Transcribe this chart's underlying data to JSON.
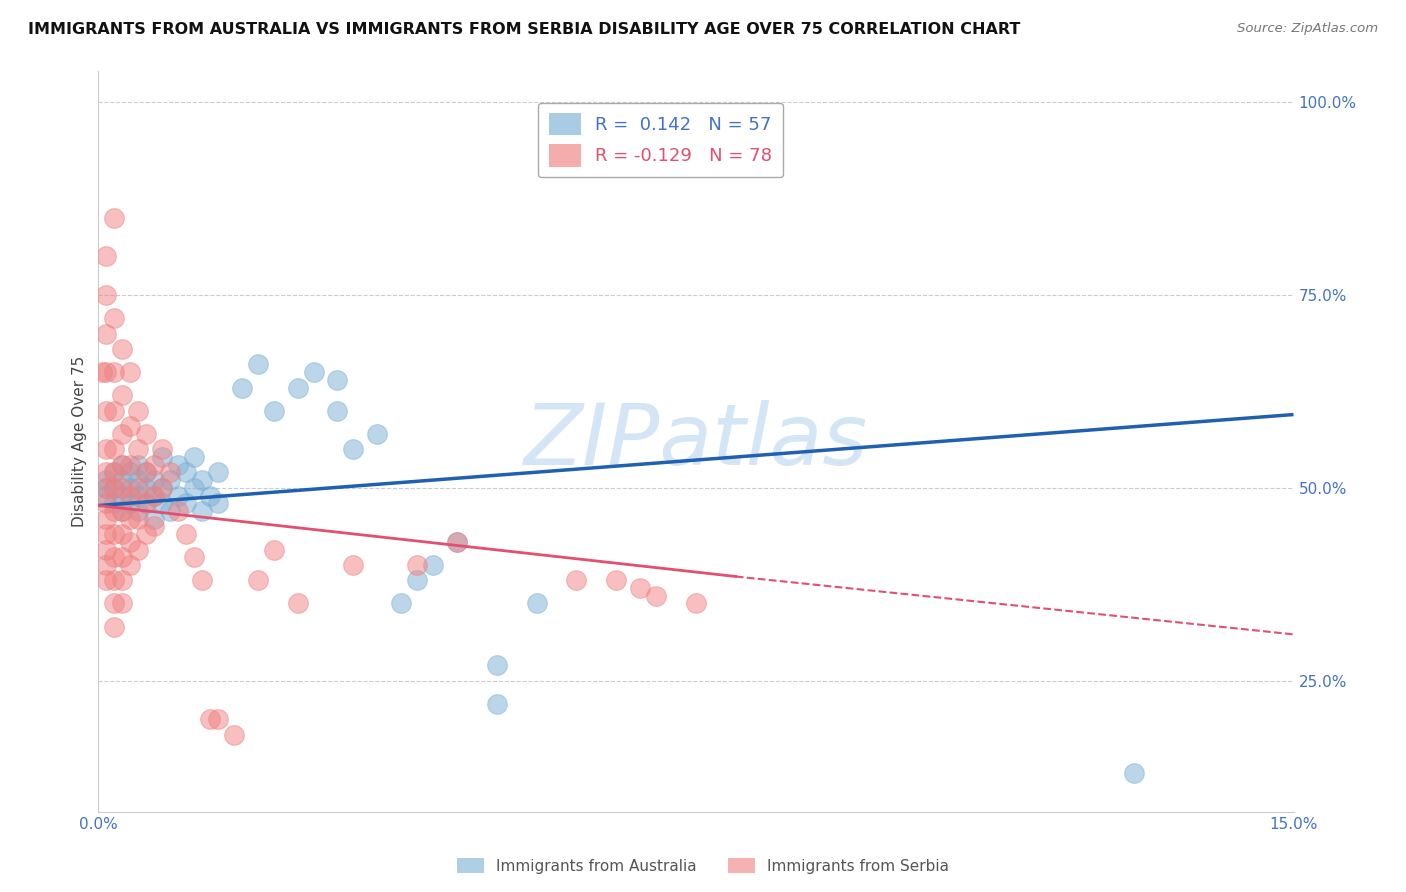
{
  "title": "IMMIGRANTS FROM AUSTRALIA VS IMMIGRANTS FROM SERBIA DISABILITY AGE OVER 75 CORRELATION CHART",
  "source": "Source: ZipAtlas.com",
  "ylabel": "Disability Age Over 75",
  "australia_color": "#7bafd4",
  "serbia_color": "#f08080",
  "watermark": "ZIPatlas",
  "xlim": [
    0.0,
    0.15
  ],
  "ylim": [
    0.08,
    1.04
  ],
  "yticks": [
    0.25,
    0.5,
    0.75,
    1.0
  ],
  "ytick_labels": [
    "25.0%",
    "50.0%",
    "75.0%",
    "100.0%"
  ],
  "xtick_labels_show": [
    "0.0%",
    "15.0%"
  ],
  "australia_line": {
    "x0": 0.0,
    "y0": 0.477,
    "x1": 0.15,
    "y1": 0.595
  },
  "serbia_line_solid": {
    "x0": 0.0,
    "y0": 0.477,
    "x1": 0.08,
    "y1": 0.385
  },
  "serbia_line_dashed": {
    "x0": 0.08,
    "y0": 0.385,
    "x1": 0.15,
    "y1": 0.31
  },
  "australia_scatter": [
    [
      0.001,
      0.49
    ],
    [
      0.001,
      0.5
    ],
    [
      0.001,
      0.51
    ],
    [
      0.002,
      0.48
    ],
    [
      0.002,
      0.5
    ],
    [
      0.002,
      0.52
    ],
    [
      0.003,
      0.47
    ],
    [
      0.003,
      0.49
    ],
    [
      0.003,
      0.51
    ],
    [
      0.003,
      0.53
    ],
    [
      0.004,
      0.48
    ],
    [
      0.004,
      0.5
    ],
    [
      0.004,
      0.52
    ],
    [
      0.005,
      0.47
    ],
    [
      0.005,
      0.49
    ],
    [
      0.005,
      0.51
    ],
    [
      0.005,
      0.53
    ],
    [
      0.006,
      0.48
    ],
    [
      0.006,
      0.5
    ],
    [
      0.006,
      0.52
    ],
    [
      0.007,
      0.46
    ],
    [
      0.007,
      0.49
    ],
    [
      0.007,
      0.51
    ],
    [
      0.008,
      0.48
    ],
    [
      0.008,
      0.5
    ],
    [
      0.008,
      0.54
    ],
    [
      0.009,
      0.47
    ],
    [
      0.009,
      0.51
    ],
    [
      0.01,
      0.49
    ],
    [
      0.01,
      0.53
    ],
    [
      0.011,
      0.48
    ],
    [
      0.011,
      0.52
    ],
    [
      0.012,
      0.5
    ],
    [
      0.012,
      0.54
    ],
    [
      0.013,
      0.47
    ],
    [
      0.013,
      0.51
    ],
    [
      0.014,
      0.49
    ],
    [
      0.015,
      0.48
    ],
    [
      0.015,
      0.52
    ],
    [
      0.018,
      0.63
    ],
    [
      0.02,
      0.66
    ],
    [
      0.022,
      0.6
    ],
    [
      0.025,
      0.63
    ],
    [
      0.027,
      0.65
    ],
    [
      0.03,
      0.6
    ],
    [
      0.03,
      0.64
    ],
    [
      0.032,
      0.55
    ],
    [
      0.035,
      0.57
    ],
    [
      0.038,
      0.35
    ],
    [
      0.04,
      0.38
    ],
    [
      0.042,
      0.4
    ],
    [
      0.045,
      0.43
    ],
    [
      0.05,
      0.27
    ],
    [
      0.05,
      0.22
    ],
    [
      0.055,
      0.35
    ],
    [
      0.13,
      0.13
    ]
  ],
  "serbia_scatter": [
    [
      0.0005,
      0.65
    ],
    [
      0.001,
      0.8
    ],
    [
      0.001,
      0.75
    ],
    [
      0.001,
      0.7
    ],
    [
      0.001,
      0.65
    ],
    [
      0.001,
      0.6
    ],
    [
      0.001,
      0.55
    ],
    [
      0.001,
      0.52
    ],
    [
      0.001,
      0.5
    ],
    [
      0.001,
      0.48
    ],
    [
      0.001,
      0.46
    ],
    [
      0.001,
      0.44
    ],
    [
      0.001,
      0.42
    ],
    [
      0.001,
      0.4
    ],
    [
      0.001,
      0.38
    ],
    [
      0.002,
      0.85
    ],
    [
      0.002,
      0.72
    ],
    [
      0.002,
      0.65
    ],
    [
      0.002,
      0.6
    ],
    [
      0.002,
      0.55
    ],
    [
      0.002,
      0.52
    ],
    [
      0.002,
      0.5
    ],
    [
      0.002,
      0.47
    ],
    [
      0.002,
      0.44
    ],
    [
      0.002,
      0.41
    ],
    [
      0.002,
      0.38
    ],
    [
      0.002,
      0.35
    ],
    [
      0.002,
      0.32
    ],
    [
      0.003,
      0.68
    ],
    [
      0.003,
      0.62
    ],
    [
      0.003,
      0.57
    ],
    [
      0.003,
      0.53
    ],
    [
      0.003,
      0.5
    ],
    [
      0.003,
      0.47
    ],
    [
      0.003,
      0.44
    ],
    [
      0.003,
      0.41
    ],
    [
      0.003,
      0.38
    ],
    [
      0.003,
      0.35
    ],
    [
      0.004,
      0.65
    ],
    [
      0.004,
      0.58
    ],
    [
      0.004,
      0.53
    ],
    [
      0.004,
      0.49
    ],
    [
      0.004,
      0.46
    ],
    [
      0.004,
      0.43
    ],
    [
      0.004,
      0.4
    ],
    [
      0.005,
      0.6
    ],
    [
      0.005,
      0.55
    ],
    [
      0.005,
      0.5
    ],
    [
      0.005,
      0.46
    ],
    [
      0.005,
      0.42
    ],
    [
      0.006,
      0.57
    ],
    [
      0.006,
      0.52
    ],
    [
      0.006,
      0.48
    ],
    [
      0.006,
      0.44
    ],
    [
      0.007,
      0.53
    ],
    [
      0.007,
      0.49
    ],
    [
      0.007,
      0.45
    ],
    [
      0.008,
      0.55
    ],
    [
      0.008,
      0.5
    ],
    [
      0.009,
      0.52
    ],
    [
      0.01,
      0.47
    ],
    [
      0.011,
      0.44
    ],
    [
      0.012,
      0.41
    ],
    [
      0.013,
      0.38
    ],
    [
      0.014,
      0.2
    ],
    [
      0.015,
      0.2
    ],
    [
      0.017,
      0.18
    ],
    [
      0.02,
      0.38
    ],
    [
      0.022,
      0.42
    ],
    [
      0.025,
      0.35
    ],
    [
      0.032,
      0.4
    ],
    [
      0.04,
      0.4
    ],
    [
      0.045,
      0.43
    ],
    [
      0.06,
      0.38
    ],
    [
      0.065,
      0.38
    ],
    [
      0.068,
      0.37
    ],
    [
      0.07,
      0.36
    ],
    [
      0.075,
      0.35
    ]
  ]
}
